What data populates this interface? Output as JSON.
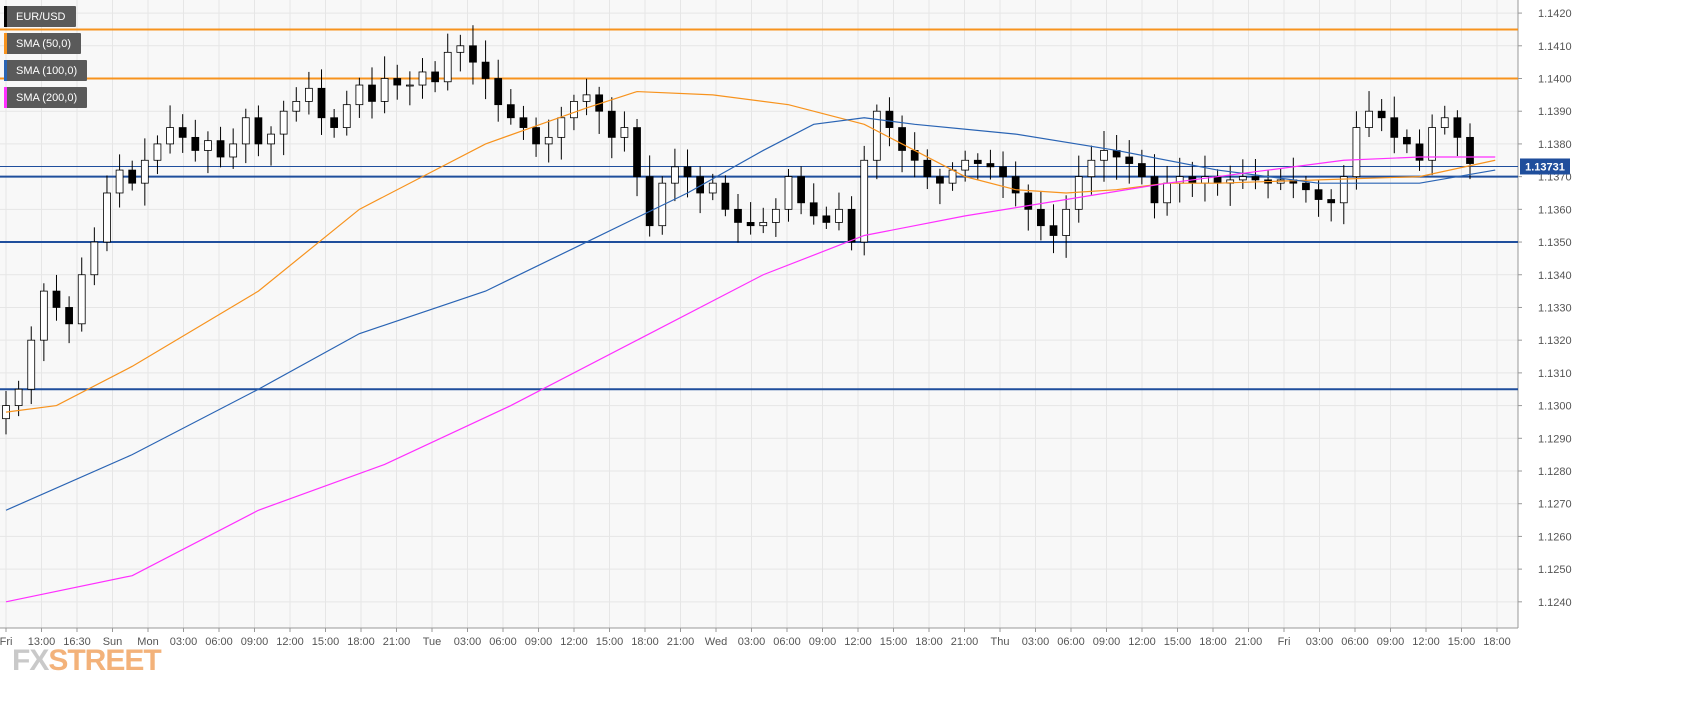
{
  "legend": [
    {
      "label": "EUR/USD",
      "color": "#000000"
    },
    {
      "label": "SMA (50,0)",
      "color": "#f7931e"
    },
    {
      "label": "SMA (100,0)",
      "color": "#2a64b4"
    },
    {
      "label": "SMA (200,0)",
      "color": "#ff2fff"
    }
  ],
  "logo": {
    "part1": "FX",
    "part2": "STREET"
  },
  "current_price_label": "1.13731",
  "colors": {
    "background": "#f8f8f8",
    "grid": "#e6e6e6",
    "candle_up": "#ffffff",
    "candle_down": "#000000",
    "resistance": "#f7931e",
    "support": "#1f4e9c",
    "price_label_bg": "#1f4e9c"
  },
  "chart_data": {
    "type": "candlestick",
    "symbol": "EUR/USD",
    "ylim": [
      1.1232,
      1.1424
    ],
    "y_ticks": [
      "1.1240",
      "1.1250",
      "1.1260",
      "1.1270",
      "1.1280",
      "1.1290",
      "1.1300",
      "1.1310",
      "1.1320",
      "1.1330",
      "1.1340",
      "1.1350",
      "1.1360",
      "1.1370",
      "1.1380",
      "1.1390",
      "1.1400",
      "1.1410",
      "1.1420"
    ],
    "x_ticks": [
      "Fri",
      "13:00",
      "16:30",
      "Sun",
      "Mon",
      "03:00",
      "06:00",
      "09:00",
      "12:00",
      "15:00",
      "18:00",
      "21:00",
      "Tue",
      "03:00",
      "06:00",
      "09:00",
      "12:00",
      "15:00",
      "18:00",
      "21:00",
      "Wed",
      "03:00",
      "06:00",
      "09:00",
      "12:00",
      "15:00",
      "18:00",
      "21:00",
      "Thu",
      "03:00",
      "06:00",
      "09:00",
      "12:00",
      "15:00",
      "18:00",
      "21:00",
      "Fri",
      "03:00",
      "06:00",
      "09:00",
      "12:00",
      "15:00",
      "18:00"
    ],
    "horizontal_levels": [
      {
        "value": 1.1415,
        "kind": "resistance"
      },
      {
        "value": 1.14,
        "kind": "resistance"
      },
      {
        "value": 1.137,
        "kind": "support"
      },
      {
        "value": 1.135,
        "kind": "support"
      },
      {
        "value": 1.1305,
        "kind": "support"
      }
    ],
    "current_price": 1.13731,
    "close_path": [
      1.13,
      1.1305,
      1.132,
      1.1335,
      1.133,
      1.1325,
      1.134,
      1.135,
      1.1365,
      1.1372,
      1.1368,
      1.1375,
      1.138,
      1.1385,
      1.1382,
      1.1378,
      1.1381,
      1.1376,
      1.138,
      1.1388,
      1.138,
      1.1383,
      1.139,
      1.1393,
      1.1397,
      1.1388,
      1.1385,
      1.1392,
      1.1398,
      1.1393,
      1.14,
      1.1398,
      1.1398,
      1.1402,
      1.1399,
      1.1408,
      1.141,
      1.1405,
      1.14,
      1.1392,
      1.1388,
      1.1385,
      1.138,
      1.1382,
      1.1388,
      1.1393,
      1.1395,
      1.139,
      1.1382,
      1.1385,
      1.137,
      1.1355,
      1.1368,
      1.1373,
      1.137,
      1.1365,
      1.1368,
      1.136,
      1.1356,
      1.1355,
      1.1356,
      1.136,
      1.137,
      1.1362,
      1.1358,
      1.1356,
      1.136,
      1.135,
      1.1375,
      1.139,
      1.1385,
      1.1378,
      1.1375,
      1.137,
      1.1368,
      1.1372,
      1.1375,
      1.1374,
      1.1373,
      1.137,
      1.1365,
      1.136,
      1.1355,
      1.1352,
      1.136,
      1.137,
      1.1375,
      1.1378,
      1.1376,
      1.1374,
      1.137,
      1.1362,
      1.1368,
      1.137,
      1.1368,
      1.137,
      1.1368,
      1.1369,
      1.137,
      1.1369,
      1.1368,
      1.1369,
      1.1368,
      1.1366,
      1.1363,
      1.1362,
      1.137,
      1.1385,
      1.139,
      1.1388,
      1.1382,
      1.138,
      1.1375,
      1.1385,
      1.1388,
      1.1382,
      1.1374
    ],
    "series": [
      {
        "name": "SMA (50,0)",
        "points": [
          [
            0,
            1.1298
          ],
          [
            4,
            1.13
          ],
          [
            10,
            1.1312
          ],
          [
            20,
            1.1335
          ],
          [
            28,
            1.136
          ],
          [
            38,
            1.138
          ],
          [
            46,
            1.1391
          ],
          [
            50,
            1.1396
          ],
          [
            56,
            1.1395
          ],
          [
            62,
            1.1392
          ],
          [
            68,
            1.1386
          ],
          [
            72,
            1.1378
          ],
          [
            76,
            1.137
          ],
          [
            80,
            1.1366
          ],
          [
            84,
            1.1365
          ],
          [
            88,
            1.1366
          ],
          [
            92,
            1.1368
          ],
          [
            96,
            1.1368
          ],
          [
            104,
            1.1369
          ],
          [
            112,
            1.137
          ],
          [
            118,
            1.1375
          ]
        ]
      },
      {
        "name": "SMA (100,0)",
        "points": [
          [
            0,
            1.1268
          ],
          [
            10,
            1.1285
          ],
          [
            20,
            1.1305
          ],
          [
            28,
            1.1322
          ],
          [
            38,
            1.1335
          ],
          [
            46,
            1.135
          ],
          [
            54,
            1.1365
          ],
          [
            60,
            1.1378
          ],
          [
            64,
            1.1386
          ],
          [
            68,
            1.1388
          ],
          [
            72,
            1.1386
          ],
          [
            80,
            1.1383
          ],
          [
            88,
            1.1378
          ],
          [
            96,
            1.1372
          ],
          [
            104,
            1.1368
          ],
          [
            112,
            1.1368
          ],
          [
            118,
            1.1372
          ]
        ]
      },
      {
        "name": "SMA (200,0)",
        "points": [
          [
            0,
            1.124
          ],
          [
            10,
            1.1248
          ],
          [
            20,
            1.1268
          ],
          [
            30,
            1.1282
          ],
          [
            40,
            1.13
          ],
          [
            50,
            1.132
          ],
          [
            60,
            1.134
          ],
          [
            68,
            1.1352
          ],
          [
            76,
            1.1358
          ],
          [
            84,
            1.1363
          ],
          [
            92,
            1.1368
          ],
          [
            100,
            1.1372
          ],
          [
            106,
            1.1375
          ],
          [
            112,
            1.1376
          ],
          [
            118,
            1.1376
          ]
        ]
      }
    ]
  }
}
